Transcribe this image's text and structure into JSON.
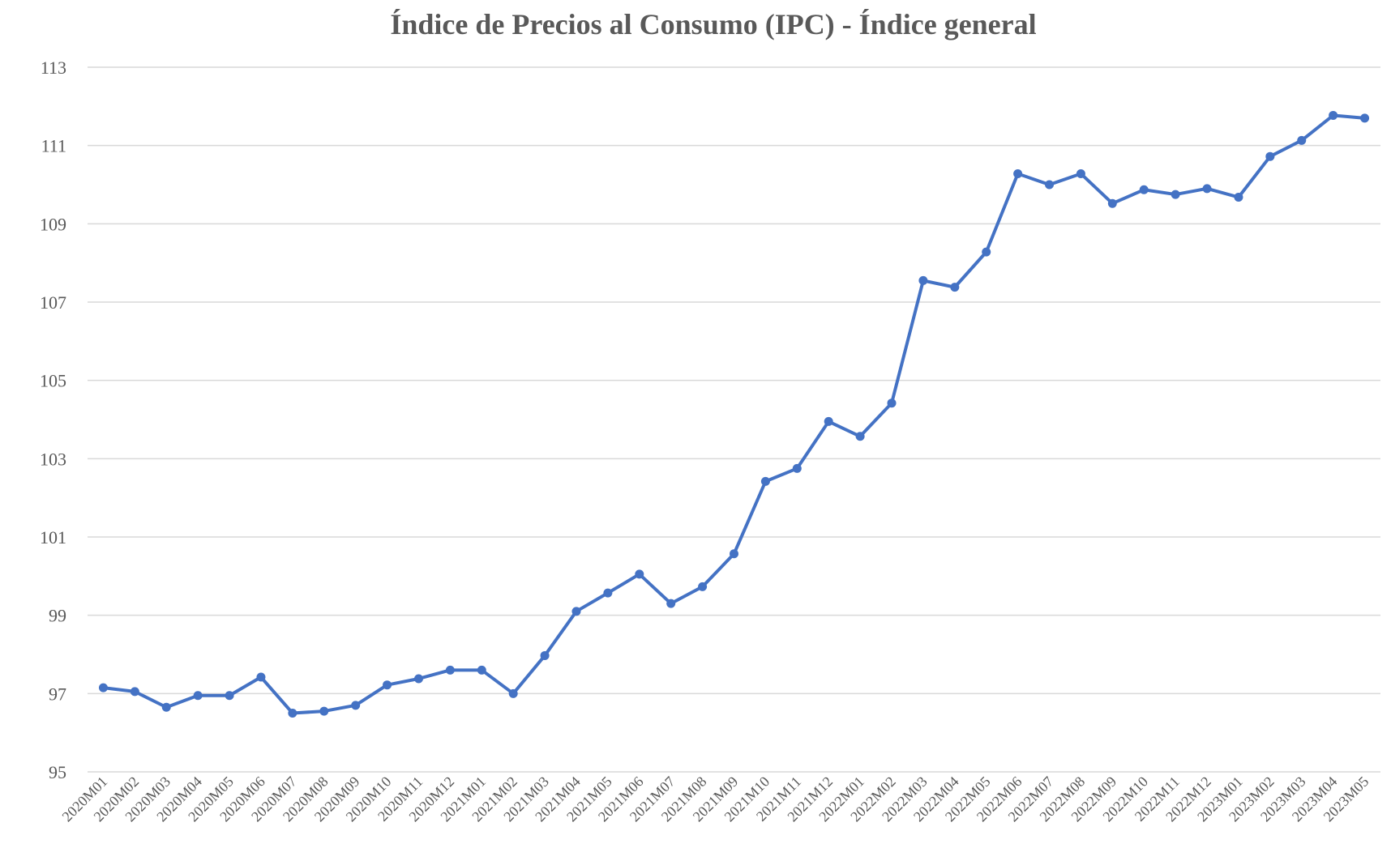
{
  "chart_data": {
    "type": "line",
    "title": "Índice de Precios al Consumo (IPC) - Índice general",
    "xlabel": "",
    "ylabel": "",
    "ylim": [
      95,
      113
    ],
    "yticks": [
      "95",
      "97",
      "99",
      "101",
      "103",
      "105",
      "107",
      "109",
      "111",
      "113"
    ],
    "ytick_values": [
      95,
      97,
      99,
      101,
      103,
      105,
      107,
      109,
      111,
      113
    ],
    "grid": true,
    "legend": "none",
    "series_color": "#4472C4",
    "categories": [
      "2020M01",
      "2020M02",
      "2020M03",
      "2020M04",
      "2020M05",
      "2020M06",
      "2020M07",
      "2020M08",
      "2020M09",
      "2020M10",
      "2020M11",
      "2020M12",
      "2021M01",
      "2021M02",
      "2021M03",
      "2021M04",
      "2021M05",
      "2021M06",
      "2021M07",
      "2021M08",
      "2021M09",
      "2021M10",
      "2021M11",
      "2021M12",
      "2022M01",
      "2022M02",
      "2022M03",
      "2022M04",
      "2022M05",
      "2022M06",
      "2022M07",
      "2022M08",
      "2022M09",
      "2022M10",
      "2022M11",
      "2022M12",
      "2023M01",
      "2023M02",
      "2023M03",
      "2023M04",
      "2023M05"
    ],
    "series": [
      {
        "name": "Índice general",
        "values": [
          97.15,
          97.05,
          96.65,
          96.95,
          96.95,
          97.42,
          96.5,
          96.55,
          96.7,
          97.22,
          97.38,
          97.6,
          97.6,
          97.0,
          97.97,
          99.1,
          99.57,
          100.05,
          99.3,
          99.73,
          100.57,
          102.42,
          102.75,
          103.95,
          103.57,
          104.42,
          107.55,
          107.38,
          108.28,
          110.28,
          110.0,
          110.28,
          109.52,
          109.87,
          109.75,
          109.9,
          109.68,
          110.72,
          111.13,
          111.77,
          111.7
        ]
      }
    ]
  }
}
